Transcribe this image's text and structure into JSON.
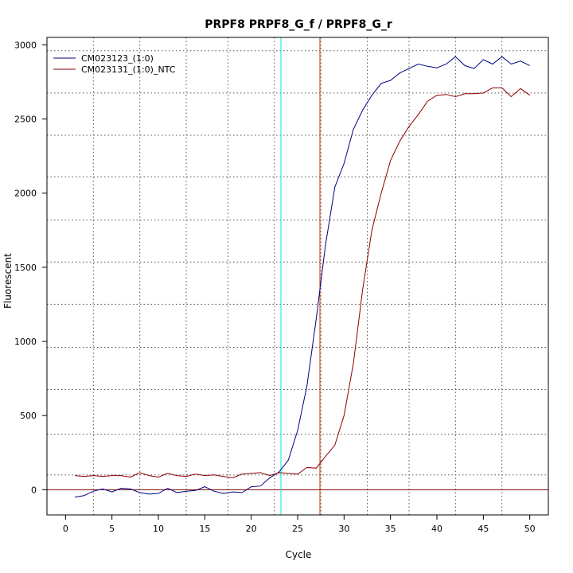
{
  "chart_data": {
    "type": "line",
    "title": "PRPF8  PRPF8_G_f / PRPF8_G_r",
    "xlabel": "Cycle",
    "ylabel": "Fluorescent",
    "xlim": [
      -2,
      52
    ],
    "ylim": [
      -170,
      3050
    ],
    "xticks": [
      0,
      5,
      10,
      15,
      20,
      25,
      30,
      35,
      40,
      45,
      50
    ],
    "xtick_labels": [
      "0",
      "5",
      "10",
      "15",
      "20",
      "25",
      "30",
      "35",
      "40",
      "45",
      "50"
    ],
    "yticks": [
      0,
      500,
      1000,
      1500,
      2000,
      2500,
      3000
    ],
    "ytick_labels": [
      "0",
      "500",
      "1000",
      "1500",
      "2000",
      "2500",
      "3000"
    ],
    "grid_vertical": [
      3,
      8,
      13,
      17.5,
      22.5,
      27.5,
      32.5,
      37,
      42,
      47
    ],
    "grid_horizontal": [
      100,
      375,
      675,
      960,
      1250,
      1535,
      1820,
      2110,
      2390,
      2675,
      2960
    ],
    "threshold_line": {
      "y": 0,
      "color": "#800000"
    },
    "cycle_markers": [
      {
        "x": 23.2,
        "color": "#00e5ee"
      },
      {
        "x": 27.4,
        "color": "#c83200"
      }
    ],
    "legend_position": "top-left",
    "x": [
      1,
      2,
      3,
      4,
      5,
      6,
      7,
      8,
      9,
      10,
      11,
      12,
      13,
      14,
      15,
      16,
      17,
      18,
      19,
      20,
      21,
      22,
      23,
      24,
      25,
      26,
      27,
      28,
      29,
      30,
      31,
      32,
      33,
      34,
      35,
      36,
      37,
      38,
      39,
      40,
      41,
      42,
      43,
      44,
      45,
      46,
      47,
      48,
      49,
      50
    ],
    "series": [
      {
        "name": "CM023123_(1:0)",
        "color": "#000080",
        "values": [
          -50,
          -40,
          -10,
          5,
          -15,
          10,
          5,
          -20,
          -30,
          -25,
          10,
          -20,
          -10,
          -5,
          20,
          -10,
          -25,
          -15,
          -20,
          20,
          25,
          80,
          120,
          200,
          400,
          700,
          1150,
          1650,
          2040,
          2200,
          2430,
          2560,
          2660,
          2740,
          2760,
          2810,
          2840,
          2870,
          2855,
          2845,
          2870,
          2920,
          2860,
          2840,
          2900,
          2870,
          2920,
          2870,
          2890,
          2860
        ]
      },
      {
        "name": "CM023131_(1:0)_NTC",
        "color": "#8b0000",
        "values": [
          95,
          90,
          95,
          90,
          95,
          95,
          85,
          115,
          95,
          85,
          110,
          95,
          90,
          105,
          95,
          100,
          90,
          80,
          105,
          110,
          115,
          95,
          115,
          110,
          105,
          150,
          145,
          225,
          300,
          500,
          850,
          1350,
          1750,
          2000,
          2220,
          2350,
          2450,
          2530,
          2620,
          2660,
          2665,
          2650,
          2670,
          2670,
          2675,
          2710,
          2710,
          2650,
          2705,
          2660
        ]
      }
    ]
  }
}
